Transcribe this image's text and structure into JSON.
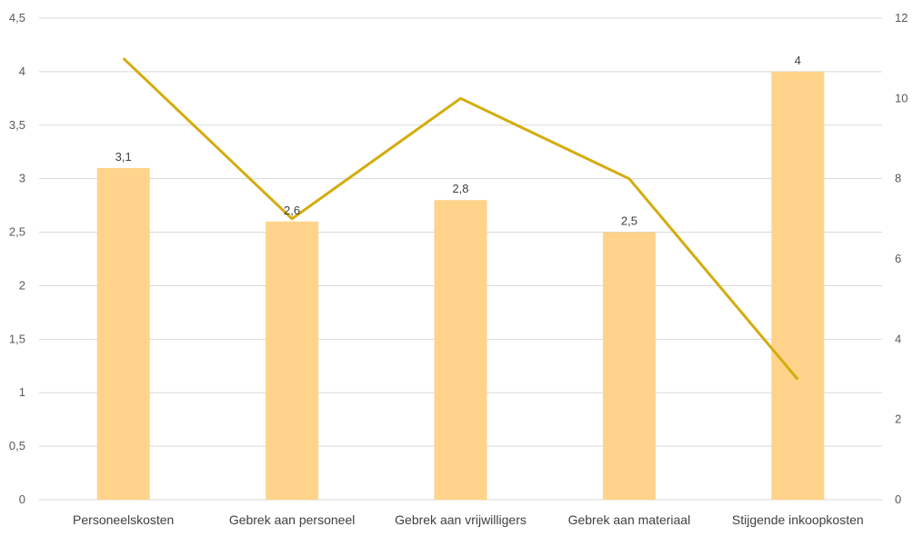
{
  "chart_data": {
    "type": "bar",
    "categories": [
      "Personeelskosten",
      "Gebrek aan personeel",
      "Gebrek aan vrijwilligers",
      "Gebrek aan materiaal",
      "Stijgende inkoopkosten"
    ],
    "series": [
      {
        "type": "bar",
        "axis": "left",
        "values": [
          3.1,
          2.6,
          2.8,
          2.5,
          4
        ],
        "data_labels": [
          "3,1",
          "2,6",
          "2,8",
          "2,5",
          "4"
        ],
        "color": "#ffd389"
      },
      {
        "type": "line",
        "axis": "right",
        "values": [
          11,
          7,
          10,
          8,
          3
        ],
        "color": "#d4ac0d"
      }
    ],
    "left_axis": {
      "ylim": [
        0,
        4.5
      ],
      "ticks": [
        "0",
        "0,5",
        "1",
        "1,5",
        "2",
        "2,5",
        "3",
        "3,5",
        "4",
        "4,5"
      ]
    },
    "right_axis": {
      "ylim": [
        0,
        12
      ],
      "ticks": [
        "0",
        "2",
        "4",
        "6",
        "8",
        "10",
        "12"
      ]
    },
    "grid": true,
    "legend": "none",
    "title": "",
    "xlabel": "",
    "ylabel": ""
  }
}
